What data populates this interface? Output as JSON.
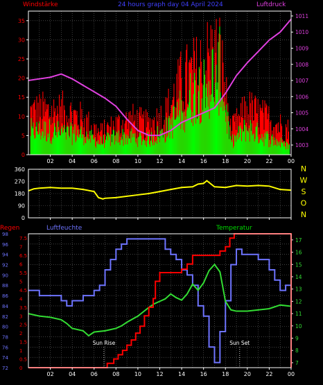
{
  "header": {
    "left_label": "Windstärke",
    "title": "24 hours graph day  04 April 2024",
    "right_label": "Luftdruck"
  },
  "colors": {
    "background": "#000000",
    "grid": "#6b6b6b",
    "wind_red": "#ff0000",
    "wind_green": "#00ff00",
    "pressure": "#e040e0",
    "direction": "#ffff00",
    "humidity": "#6e74ff",
    "temperature": "#33dd33",
    "rain": "#ff0000",
    "blue_label": "#4040ff",
    "axis_text": "#ffffff"
  },
  "x_tick_labels": [
    "02",
    "04",
    "06",
    "08",
    "10",
    "12",
    "14",
    "16",
    "18",
    "20",
    "22",
    "00"
  ],
  "panel2_labels": {
    "compass": [
      "N",
      "W",
      "S",
      "O",
      "N"
    ]
  },
  "panel3_labels": {
    "rain": "Regen",
    "humidity": "Luftfeuchte",
    "temperature": "Temperatur",
    "sunrise": "Sun Rise",
    "sunset": "Sun Set"
  },
  "chart_data": [
    {
      "type": "bar",
      "description_of_axes": "wind (left) and pressure (right)",
      "x_unit": "hour",
      "xlim": [
        0,
        24
      ],
      "y_left_ticks": [
        0,
        5,
        10,
        15,
        20,
        25,
        30,
        35
      ],
      "ylim_left": [
        0,
        37.5
      ],
      "y_right_ticks": [
        1003,
        1004,
        1005,
        1006,
        1007,
        1008,
        1009,
        1010,
        1011
      ],
      "ylim_right": [
        1002.4,
        1011.3
      ],
      "series": [
        {
          "name": "Windstärke",
          "kind": "gust",
          "hours": [
            0.5,
            2,
            3.5,
            5,
            6.5,
            8,
            9.5,
            11,
            12.5,
            14,
            15.5,
            16.5,
            17.5,
            18.5,
            20,
            21.5,
            23,
            23.9
          ],
          "values": [
            16,
            16,
            16,
            13,
            8,
            11,
            13,
            11,
            15,
            27,
            31,
            36,
            37,
            9,
            17,
            14,
            11,
            9
          ]
        },
        {
          "name": "Windstärke",
          "kind": "mean",
          "hours": [
            0.5,
            2,
            3.5,
            5,
            6.5,
            8,
            9.5,
            11,
            12.5,
            14,
            15.5,
            16.5,
            17.5,
            18.5,
            20,
            21.5,
            23,
            23.9
          ],
          "values": [
            8,
            8,
            7,
            7,
            4,
            6,
            6,
            5,
            8,
            15,
            22,
            25,
            28,
            4,
            9,
            6,
            4,
            3
          ]
        },
        {
          "name": "Luftdruck",
          "hours": [
            0,
            1,
            2,
            3,
            4,
            5,
            6,
            7,
            8,
            9,
            10,
            11,
            12,
            13,
            14,
            15,
            16,
            17,
            18,
            19,
            20,
            21,
            22,
            23,
            24
          ],
          "values": [
            1007.0,
            1007.1,
            1007.2,
            1007.4,
            1007.1,
            1006.7,
            1006.3,
            1005.9,
            1005.4,
            1004.6,
            1003.9,
            1003.6,
            1003.6,
            1003.9,
            1004.4,
            1004.7,
            1005.0,
            1005.3,
            1006.2,
            1007.3,
            1008.1,
            1008.8,
            1009.5,
            1010.0,
            1010.8
          ]
        }
      ]
    },
    {
      "type": "line",
      "description_of_axes": "wind direction",
      "x_unit": "hour",
      "xlim": [
        0,
        24
      ],
      "y_ticks": [
        0,
        90,
        180,
        270,
        360
      ],
      "ylim": [
        0,
        360
      ],
      "series": [
        {
          "hours": [
            0,
            0.5,
            1,
            2,
            3,
            4,
            5,
            6,
            6.4,
            6.8,
            7,
            8,
            9,
            10,
            11,
            12,
            13,
            14,
            15,
            15.5,
            16,
            16.3,
            17,
            18,
            19,
            20,
            21,
            22,
            23,
            24
          ],
          "values": [
            200,
            215,
            220,
            225,
            220,
            220,
            210,
            195,
            150,
            140,
            145,
            150,
            160,
            170,
            180,
            195,
            210,
            225,
            230,
            250,
            255,
            275,
            230,
            225,
            240,
            235,
            240,
            235,
            210,
            205
          ]
        }
      ]
    },
    {
      "type": "line",
      "description_of_axes": "rain, humidity and temperature",
      "x_unit": "hour",
      "xlim": [
        0,
        24
      ],
      "humidity_ticks": [
        72,
        74,
        76,
        78,
        80,
        82,
        84,
        86,
        88,
        90,
        92,
        94,
        96,
        98
      ],
      "humidity_lim": [
        72,
        98
      ],
      "rain_ticks": [
        0,
        0.5,
        1,
        1.5,
        2,
        2.5,
        3,
        3.5,
        4,
        4.5,
        5,
        5.5,
        6,
        6.5,
        7,
        7.5
      ],
      "rain_lim": [
        0,
        7.75
      ],
      "temperature_ticks": [
        7,
        8,
        9,
        10,
        11,
        12,
        13,
        14,
        15,
        16,
        17
      ],
      "temperature_lim": [
        6.6,
        17.5
      ],
      "series": [
        {
          "name": "Luftfeuchte",
          "hours": [
            0,
            1,
            2,
            3,
            3.5,
            4,
            5,
            6,
            6.5,
            7,
            7.5,
            8,
            8.5,
            9,
            10,
            11,
            12,
            12.5,
            13,
            13.5,
            14,
            14.5,
            15,
            15.5,
            16,
            16.5,
            17,
            17.5,
            18,
            18.5,
            19,
            19.5,
            20,
            20.5,
            21,
            22,
            22.5,
            23,
            23.5,
            24
          ],
          "values": [
            87,
            86,
            86,
            85,
            84,
            85,
            86,
            87,
            88,
            91,
            93,
            95,
            96,
            97,
            97,
            97,
            97,
            95,
            94,
            93,
            91,
            90,
            88,
            84,
            82,
            76,
            73,
            79,
            85,
            92,
            95,
            94,
            94,
            94,
            93,
            91,
            89,
            87,
            88,
            90
          ]
        },
        {
          "name": "Temperatur",
          "hours": [
            0,
            1,
            2,
            3,
            3.5,
            4,
            5,
            5.5,
            6,
            7,
            7.5,
            8,
            8.5,
            9,
            10,
            11,
            11.5,
            12,
            12.5,
            13,
            13.5,
            14,
            14.5,
            15,
            15.5,
            16,
            16.5,
            17,
            17.5,
            18,
            18.5,
            19,
            20,
            21,
            22,
            23,
            24
          ],
          "values": [
            11.0,
            10.8,
            10.7,
            10.5,
            10.2,
            9.8,
            9.6,
            9.2,
            9.5,
            9.6,
            9.7,
            9.8,
            10.0,
            10.3,
            10.8,
            11.5,
            11.8,
            12.0,
            12.2,
            12.6,
            12.3,
            12.1,
            12.6,
            13.4,
            12.9,
            13.5,
            14.5,
            15.0,
            14.4,
            12.0,
            11.3,
            11.2,
            11.2,
            11.3,
            11.4,
            11.7,
            11.6
          ]
        },
        {
          "name": "Regen",
          "hours": [
            0,
            6.9,
            7.2,
            7.8,
            8.2,
            8.6,
            9,
            9.4,
            9.8,
            10.2,
            10.6,
            11,
            11.4,
            11.6,
            12,
            13,
            13.6,
            14,
            14.5,
            15,
            16,
            17,
            17.5,
            18,
            18.4,
            18.8,
            19,
            20,
            21,
            22,
            23,
            23.9
          ],
          "values": [
            0,
            0,
            0.25,
            0.5,
            0.75,
            1.0,
            1.3,
            1.6,
            2.0,
            2.4,
            3.0,
            3.5,
            4.0,
            5.0,
            5.5,
            5.5,
            5.5,
            5.7,
            6.0,
            6.5,
            6.5,
            6.5,
            6.75,
            7.0,
            7.5,
            7.75,
            7.75,
            7.75,
            7.75,
            7.75,
            7.75,
            7.75
          ]
        }
      ],
      "annotations": [
        {
          "text": "Sun Rise",
          "hour": 6.9
        },
        {
          "text": "Sun Set",
          "hour": 19.3
        }
      ]
    }
  ]
}
